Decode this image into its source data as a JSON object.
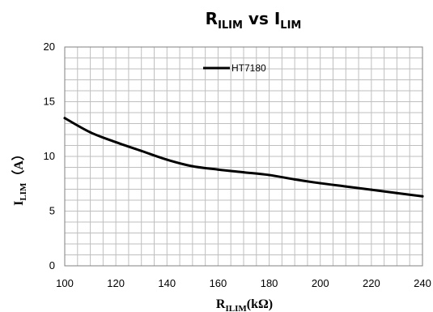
{
  "chart_data": {
    "type": "line",
    "title": {
      "main": "R",
      "main_sub": "ILIM",
      "mid": " vs I",
      "mid_sub": "LIM"
    },
    "xlabel": {
      "main": "R",
      "sub": "ILIM",
      "tail": "(kΩ)"
    },
    "ylabel": {
      "main": "I",
      "sub": "LIM",
      "tail": "（A）"
    },
    "xlim": [
      100,
      240
    ],
    "ylim": [
      0,
      20
    ],
    "xticks": [
      100,
      120,
      140,
      160,
      180,
      200,
      220,
      240
    ],
    "yticks": [
      0,
      5,
      10,
      15,
      20
    ],
    "grid": true,
    "legend_position": "top-center",
    "series": [
      {
        "name": "HT7180",
        "color": "#000000",
        "x": [
          100,
          110,
          120,
          130,
          140,
          150,
          160,
          170,
          180,
          190,
          200,
          210,
          220,
          230,
          240
        ],
        "y": [
          13.5,
          12.2,
          11.3,
          10.5,
          9.7,
          9.1,
          8.8,
          8.55,
          8.3,
          7.9,
          7.55,
          7.25,
          6.95,
          6.65,
          6.35
        ]
      }
    ]
  }
}
